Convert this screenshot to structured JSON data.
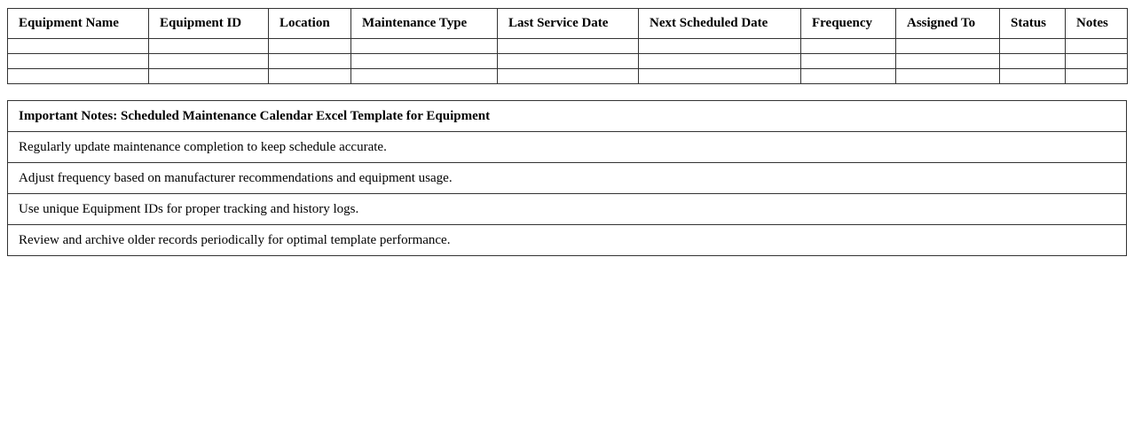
{
  "schedule": {
    "columns": [
      "Equipment Name",
      "Equipment ID",
      "Location",
      "Maintenance Type",
      "Last Service Date",
      "Next Scheduled Date",
      "Frequency",
      "Assigned To",
      "Status",
      "Notes"
    ],
    "rows": [
      [
        "",
        "",
        "",
        "",
        "",
        "",
        "",
        "",
        "",
        ""
      ],
      [
        "",
        "",
        "",
        "",
        "",
        "",
        "",
        "",
        "",
        ""
      ],
      [
        "",
        "",
        "",
        "",
        "",
        "",
        "",
        "",
        "",
        ""
      ]
    ]
  },
  "notes": {
    "title": "Important Notes: Scheduled Maintenance Calendar Excel Template for Equipment",
    "items": [
      "Regularly update maintenance completion to keep schedule accurate.",
      "Adjust frequency based on manufacturer recommendations and equipment usage.",
      "Use unique Equipment IDs for proper tracking and history logs.",
      "Review and archive older records periodically for optimal template performance."
    ]
  }
}
